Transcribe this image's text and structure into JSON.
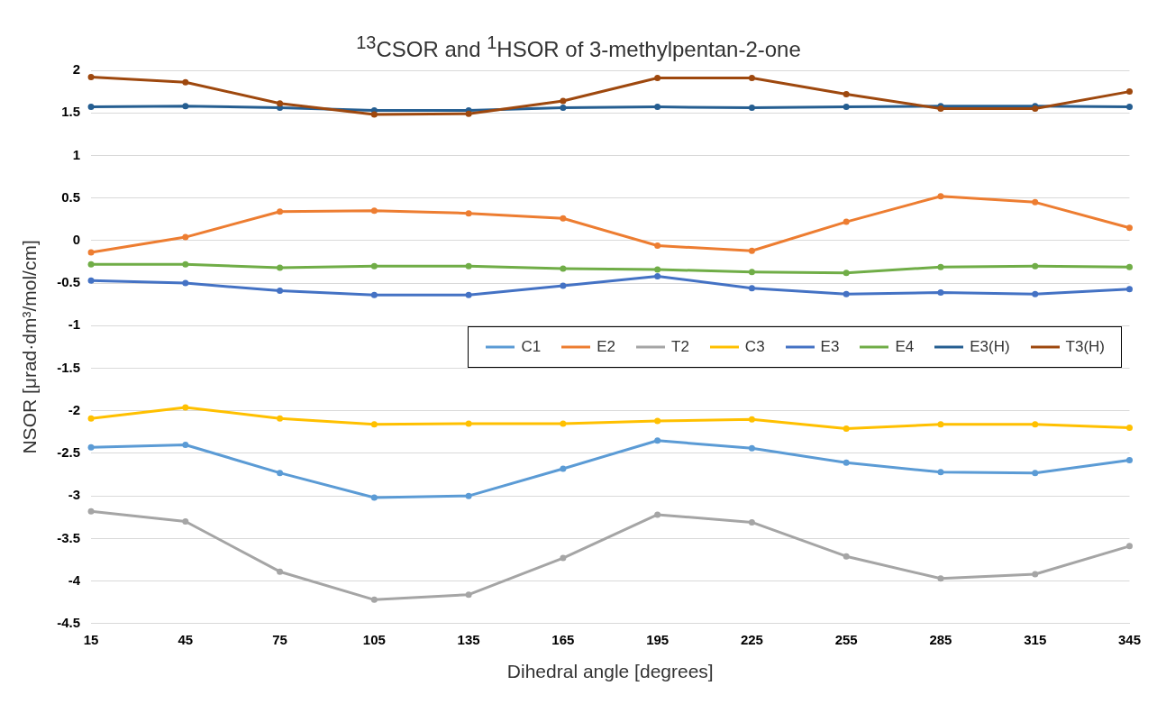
{
  "chart_data": {
    "type": "line",
    "title": "$^{13}$CSOR and $^{1}$HSOR of 3-methylpentan-2-one",
    "xlabel": "Dihedral angle [degrees]",
    "ylabel": "NSOR [μrad·dm³/mol/cm]",
    "categories": [
      "15",
      "45",
      "75",
      "105",
      "135",
      "165",
      "195",
      "225",
      "255",
      "285",
      "315",
      "345"
    ],
    "ylim": [
      -4.5,
      2
    ],
    "yticks": [
      -4.5,
      -4,
      -3.5,
      -3,
      -2.5,
      -2,
      -1.5,
      -1,
      -0.5,
      0,
      0.5,
      1,
      1.5,
      2
    ],
    "grid": "y",
    "legend": "right",
    "marker": "circle",
    "line_style": "solid",
    "series": [
      {
        "name": "C1",
        "color": "#5b9bd5",
        "values": [
          -2.43,
          -2.4,
          -2.73,
          -3.02,
          -3.0,
          -2.68,
          -2.35,
          -2.44,
          -2.61,
          -2.72,
          -2.73,
          -2.58
        ]
      },
      {
        "name": "E2",
        "color": "#ed7d31",
        "values": [
          -0.14,
          0.04,
          0.34,
          0.35,
          0.32,
          0.26,
          -0.06,
          -0.12,
          0.22,
          0.52,
          0.45,
          0.15
        ]
      },
      {
        "name": "T2",
        "color": "#a5a5a5",
        "values": [
          -3.18,
          -3.3,
          -3.89,
          -4.22,
          -4.16,
          -3.73,
          -3.22,
          -3.31,
          -3.71,
          -3.97,
          -3.92,
          -3.59
        ]
      },
      {
        "name": "C3",
        "color": "#ffc000",
        "values": [
          -2.09,
          -1.96,
          -2.09,
          -2.16,
          -2.15,
          -2.15,
          -2.12,
          -2.1,
          -2.21,
          -2.16,
          -2.16,
          -2.2
        ]
      },
      {
        "name": "E3",
        "color": "#4472c4",
        "values": [
          -0.47,
          -0.5,
          -0.59,
          -0.64,
          -0.64,
          -0.53,
          -0.42,
          -0.56,
          -0.63,
          -0.61,
          -0.63,
          -0.57
        ]
      },
      {
        "name": "E4",
        "color": "#70ad47",
        "values": [
          -0.28,
          -0.28,
          -0.32,
          -0.3,
          -0.3,
          -0.33,
          -0.34,
          -0.37,
          -0.38,
          -0.31,
          -0.3,
          -0.31
        ]
      },
      {
        "name": "E3(H)",
        "color": "#255e91",
        "values": [
          1.57,
          1.58,
          1.56,
          1.53,
          1.53,
          1.56,
          1.57,
          1.56,
          1.57,
          1.58,
          1.58,
          1.57
        ]
      },
      {
        "name": "T3(H)",
        "color": "#9e480e",
        "values": [
          1.92,
          1.86,
          1.61,
          1.48,
          1.49,
          1.64,
          1.91,
          1.91,
          1.72,
          1.55,
          1.55,
          1.75
        ]
      }
    ]
  }
}
